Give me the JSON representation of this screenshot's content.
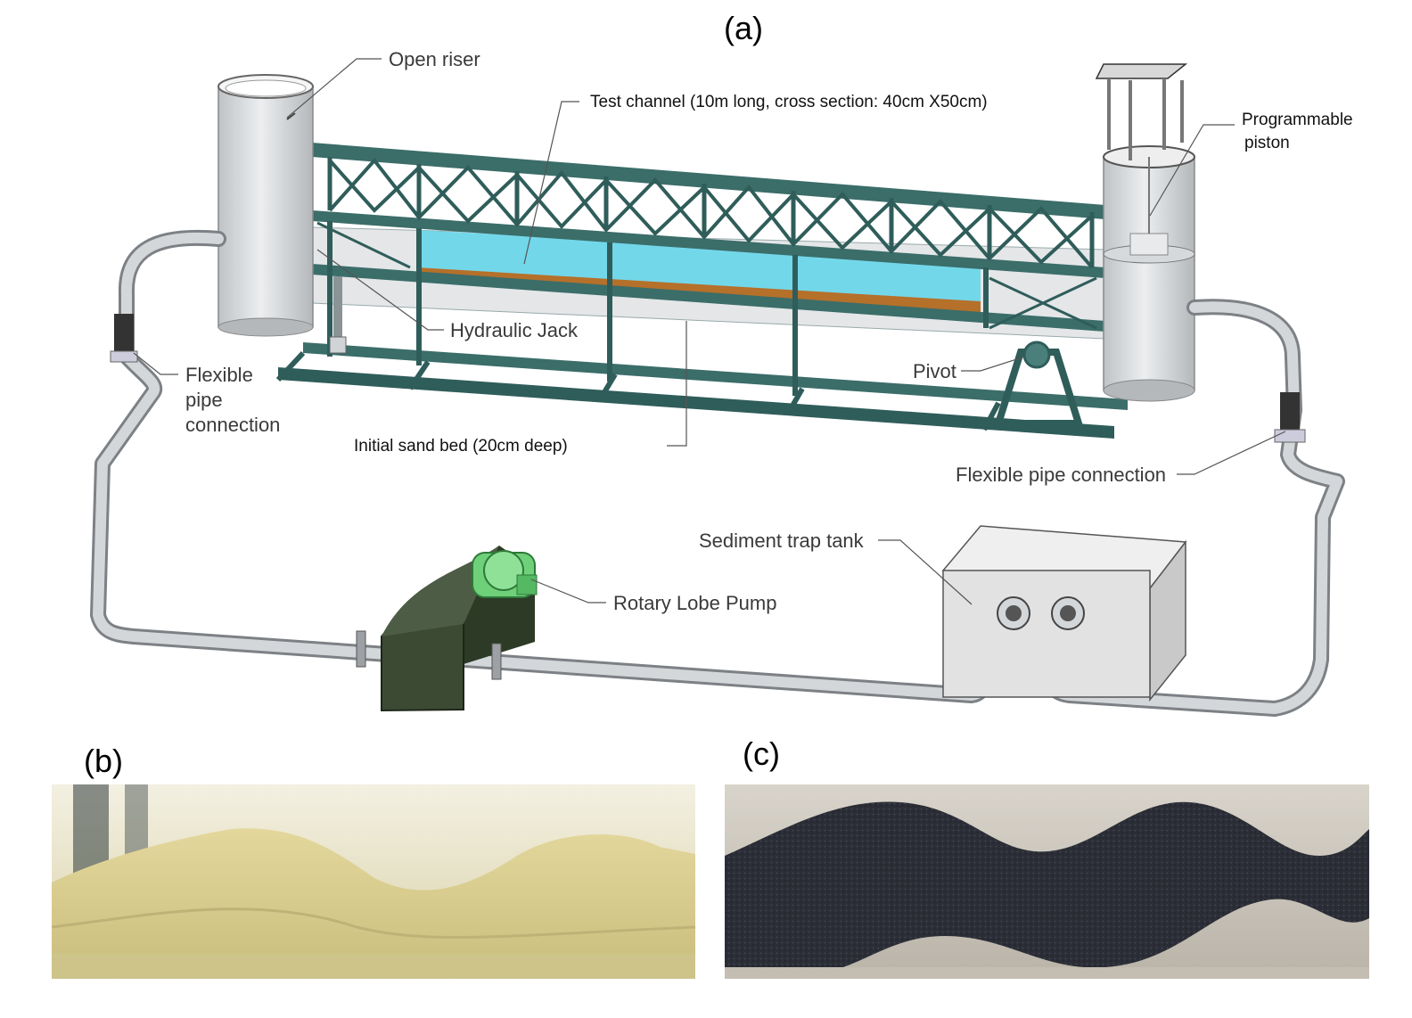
{
  "panels": {
    "a": "(a)",
    "b": "(b)",
    "c": "(c)"
  },
  "labels": {
    "open_riser": "Open riser",
    "test_channel": "Test channel (10m long, cross section: 40cm X50cm)",
    "programmable_piston_1": "Programmable",
    "programmable_piston_2": "piston",
    "hydraulic_jack": "Hydraulic Jack",
    "pivot": "Pivot",
    "flexible_left_1": "Flexible",
    "flexible_left_2": "pipe",
    "flexible_left_3": "connection",
    "initial_sand_bed": "Initial sand bed (20cm deep)",
    "flexible_right": "Flexible pipe connection",
    "sediment_trap_tank": "Sediment trap tank",
    "rotary_lobe_pump": "Rotary Lobe Pump"
  },
  "colors": {
    "frame": "#2f5d5a",
    "frame_light": "#4a7f7b",
    "water": "#5fd3ea",
    "sand_bed": "#b5702a",
    "pipe": "#c9ccd0",
    "pump_body": "#3c4a34",
    "motor": "#6fd07a",
    "tank": "#e2e2e2",
    "sand_photo": "#e6dcac",
    "dark_sand": "#2d3038"
  }
}
